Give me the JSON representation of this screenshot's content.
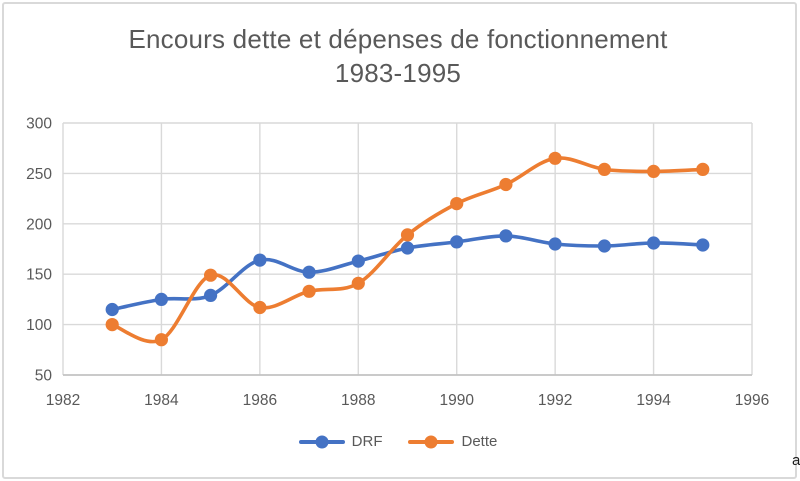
{
  "chart": {
    "title_line1": "Encours dette et dépenses de fonctionnement",
    "title_line2": "1983-1995",
    "corner_artifact": "a"
  },
  "colors": {
    "drf": "#4472C4",
    "dette": "#ED7D31",
    "gridline": "#D9D9D9",
    "axis_line": "#BFBFBF",
    "tick_text": "#595959",
    "title_text": "#595959",
    "border": "#D9D9D9"
  },
  "chart_data": {
    "type": "line",
    "title": "Encours dette et dépenses de fonctionnement 1983-1995",
    "xlabel": "",
    "ylabel": "",
    "x": [
      1983,
      1984,
      1985,
      1986,
      1987,
      1988,
      1989,
      1990,
      1991,
      1992,
      1993,
      1994,
      1995
    ],
    "series": [
      {
        "name": "DRF",
        "color": "#4472C4",
        "values": [
          115,
          125,
          129,
          164,
          152,
          163,
          176,
          182,
          188,
          180,
          178,
          181,
          179
        ]
      },
      {
        "name": "Dette",
        "color": "#ED7D31",
        "values": [
          100,
          85,
          149,
          117,
          133,
          141,
          189,
          220,
          239,
          265,
          254,
          252,
          254
        ]
      }
    ],
    "xlim": [
      1982,
      1996
    ],
    "ylim": [
      50,
      300
    ],
    "x_ticks": [
      1982,
      1984,
      1986,
      1988,
      1990,
      1992,
      1994,
      1996
    ],
    "y_ticks": [
      50,
      100,
      150,
      200,
      250,
      300
    ],
    "grid": true,
    "smooth_lines": true,
    "legend_position": "bottom"
  }
}
